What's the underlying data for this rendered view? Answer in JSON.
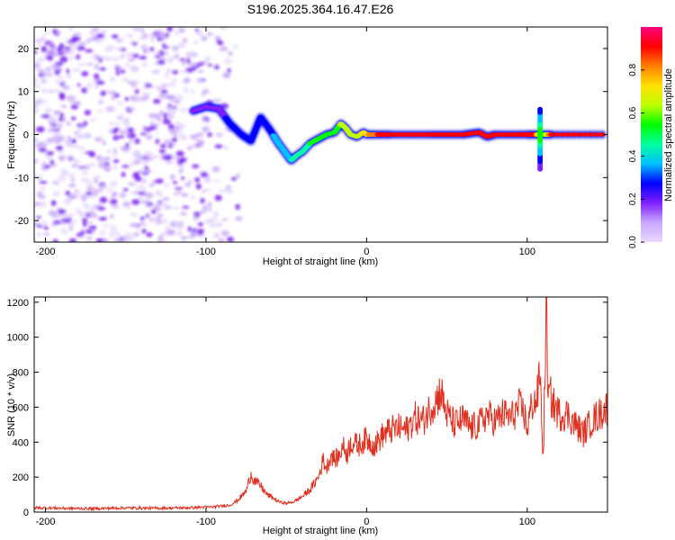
{
  "chart_data": [
    {
      "type": "heatmap",
      "title": "S196.2025.364.16.47.E26",
      "xlabel": "Height of straight line (km)",
      "ylabel": "Frequency (Hz)",
      "xlim": [
        -207,
        150
      ],
      "ylim": [
        -25,
        25
      ],
      "xticks": [
        -200,
        -100,
        0,
        100
      ],
      "xtick_labels": [
        "-200",
        "-100",
        "0",
        "100"
      ],
      "yticks": [
        -20,
        -10,
        0,
        10,
        20
      ],
      "ytick_labels": [
        "-20",
        "-10",
        "0",
        "10",
        "20"
      ],
      "colorbar": {
        "label": "Normalized spectral amplitude",
        "range": [
          0,
          1
        ],
        "ticks": [
          0.0,
          0.2,
          0.4,
          0.6,
          0.8
        ],
        "tick_labels": [
          "0.0",
          "0.2",
          "0.4",
          "0.6",
          "0.8"
        ],
        "colormap": [
          "#e8d8ff",
          "#c8a8ff",
          "#8020ff",
          "#0000ff",
          "#00c0ff",
          "#00ffa0",
          "#00ff00",
          "#c0ff00",
          "#ffe000",
          "#ff8000",
          "#ff0000",
          "#ff0080"
        ]
      },
      "ridge": {
        "x": [
          -108,
          -100,
          -92,
          -85,
          -78,
          -72,
          -66,
          -60,
          -55,
          -50,
          -47,
          -44,
          -40,
          -35,
          -30,
          -25,
          -20,
          -16,
          -13,
          -10,
          -6,
          -2,
          0,
          5,
          15,
          40,
          60,
          70,
          75,
          80,
          100,
          105,
          108,
          110,
          115,
          150
        ],
        "y": [
          5.5,
          6.5,
          6.0,
          2.5,
          0.0,
          -1.5,
          4.0,
          1.0,
          -2.0,
          -4.5,
          -6.0,
          -5.0,
          -4.0,
          -2.0,
          -1.0,
          0.0,
          0.5,
          2.5,
          1.5,
          0.0,
          -0.5,
          0.5,
          0.0,
          0.0,
          0.0,
          0.0,
          0.0,
          0.5,
          -0.5,
          0.0,
          0.0,
          0.0,
          0.0,
          0.0,
          0.0,
          0.0
        ],
        "amplitude": [
          0.15,
          0.2,
          0.2,
          0.25,
          0.3,
          0.3,
          0.3,
          0.3,
          0.35,
          0.35,
          0.4,
          0.45,
          0.45,
          0.5,
          0.5,
          0.55,
          0.55,
          0.6,
          0.6,
          0.6,
          0.65,
          0.7,
          0.75,
          0.85,
          0.95,
          0.95,
          0.95,
          0.9,
          0.9,
          0.95,
          0.95,
          0.9,
          0.6,
          0.5,
          0.9,
          0.95
        ]
      },
      "noise_region_x": [
        -207,
        -85
      ]
    },
    {
      "type": "line",
      "xlabel": "Height of straight line (km)",
      "ylabel": "SNR (10 * v/v)",
      "xlim": [
        -207,
        150
      ],
      "ylim": [
        0,
        1230
      ],
      "xticks": [
        -200,
        -100,
        0,
        100
      ],
      "xtick_labels": [
        "-200",
        "-100",
        "0",
        "100"
      ],
      "yticks": [
        0,
        200,
        400,
        600,
        800,
        1000,
        1200
      ],
      "ytick_labels": [
        "0",
        "200",
        "400",
        "600",
        "800",
        "1000",
        "1200"
      ],
      "color": "#e03020",
      "series": [
        {
          "name": "SNR",
          "x": [
            -207,
            -190,
            -170,
            -150,
            -130,
            -110,
            -95,
            -85,
            -80,
            -75,
            -72,
            -70,
            -66,
            -62,
            -58,
            -55,
            -50,
            -45,
            -40,
            -35,
            -30,
            -27,
            -25,
            -22,
            -20,
            -17,
            -15,
            -12,
            -10,
            -5,
            0,
            5,
            10,
            15,
            20,
            25,
            30,
            35,
            40,
            44,
            46,
            48,
            50,
            55,
            60,
            65,
            70,
            75,
            80,
            85,
            90,
            95,
            98,
            100,
            103,
            106,
            108,
            110,
            112,
            113,
            114,
            116,
            120,
            125,
            130,
            135,
            140,
            145,
            150
          ],
          "y": [
            25,
            22,
            20,
            24,
            22,
            25,
            30,
            40,
            70,
            120,
            220,
            180,
            150,
            100,
            80,
            60,
            50,
            60,
            90,
            130,
            200,
            300,
            250,
            330,
            300,
            320,
            380,
            330,
            400,
            380,
            420,
            380,
            440,
            470,
            480,
            470,
            540,
            520,
            600,
            650,
            700,
            620,
            560,
            500,
            530,
            480,
            500,
            560,
            520,
            560,
            540,
            600,
            570,
            480,
            620,
            640,
            800,
            300,
            1230,
            620,
            680,
            620,
            560,
            560,
            500,
            450,
            520,
            560,
            600
          ]
        }
      ]
    }
  ]
}
